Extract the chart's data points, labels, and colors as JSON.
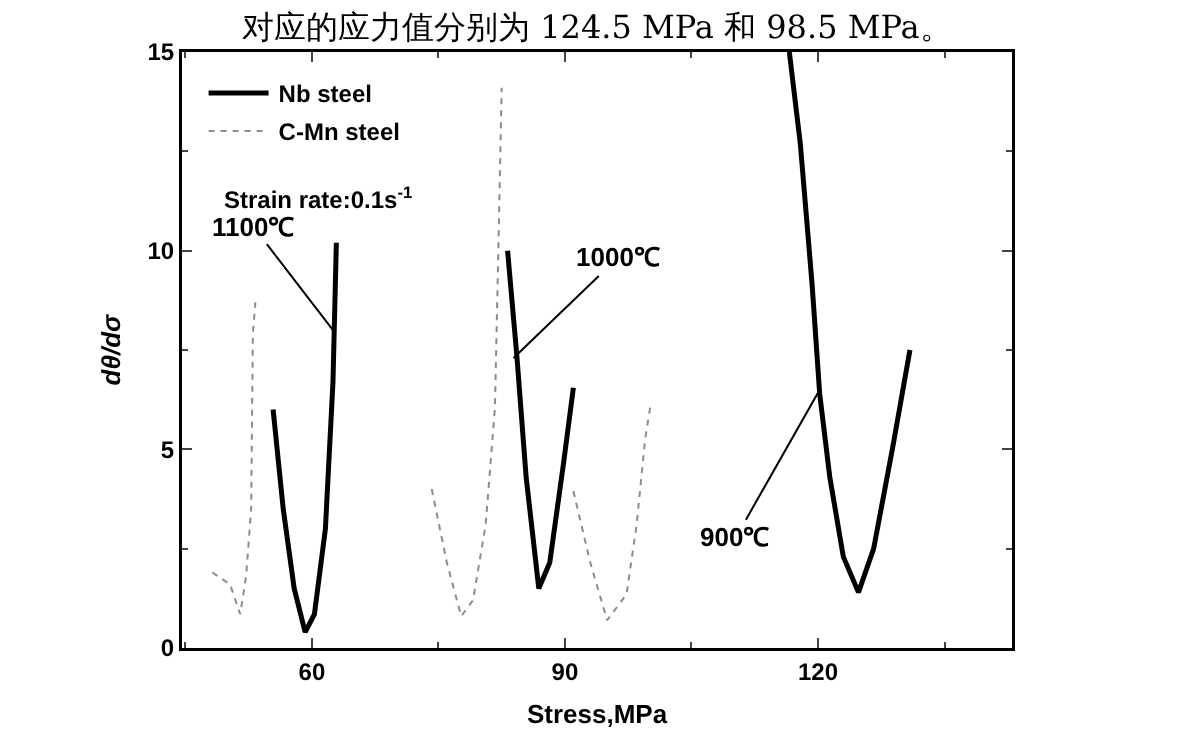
{
  "chart_data": {
    "type": "line",
    "xlabel": "Stress,MPa",
    "ylabel": "dθ/dσ",
    "xlim": [
      44.6,
      143
    ],
    "xticks": [
      60,
      90,
      120
    ],
    "ylim": [
      0,
      15
    ],
    "yticks": [
      0,
      5,
      10,
      15
    ],
    "grid": false,
    "legend": "top left",
    "marker": "none",
    "series": [
      {
        "name": "Nb steel",
        "color": "#000000",
        "line_style": "solid",
        "x": [
          55.4,
          56.6,
          57.9,
          59.2,
          60.3,
          61.6,
          62.5,
          62.9,
          null,
          83.2,
          84.3,
          85.4,
          86.9,
          88.2,
          89.8,
          91.0,
          null,
          116.6,
          117.9,
          119.3,
          120.2,
          121.4,
          123.0,
          124.8,
          126.6,
          128.9,
          130.9
        ],
        "values": [
          6.0,
          3.5,
          1.5,
          0.4,
          0.85,
          3.0,
          6.7,
          10.2,
          null,
          10.0,
          7.35,
          4.3,
          1.5,
          2.15,
          4.6,
          6.55,
          null,
          15,
          12.7,
          9.15,
          6.4,
          4.3,
          2.3,
          1.4,
          2.5,
          5.1,
          7.5
        ]
      },
      {
        "name": "C-Mn steel",
        "color": "#8c8c8c",
        "line_style": "dotted",
        "x": [
          48.2,
          50.3,
          51.5,
          52.2,
          52.8,
          53.0,
          53.3,
          null,
          74.2,
          76.0,
          77.7,
          79.1,
          80.6,
          81.7,
          82.1,
          82.5,
          null,
          91.0,
          93.0,
          95.0,
          97.3,
          98.5,
          99.5,
          100.1
        ],
        "values": [
          1.9,
          1.6,
          0.85,
          1.8,
          3.5,
          7.9,
          8.7,
          null,
          4.0,
          2.15,
          0.8,
          1.2,
          3.1,
          6.05,
          10.0,
          14.1,
          null,
          3.95,
          2.15,
          0.7,
          1.35,
          3.1,
          5.25,
          6.05
        ]
      }
    ],
    "annotations": [
      {
        "text": "1100℃",
        "x": 62.5,
        "y": 8.0
      },
      {
        "text": "1000℃",
        "x": 83.9,
        "y": 7.3
      },
      {
        "text": "900℃",
        "x": 120.2,
        "y": 6.5
      },
      "Strain rate:0.1s$^{-1}$",
      "对应的应力值分别为 124.5 MPa 和 98.5 MPa。"
    ]
  }
}
